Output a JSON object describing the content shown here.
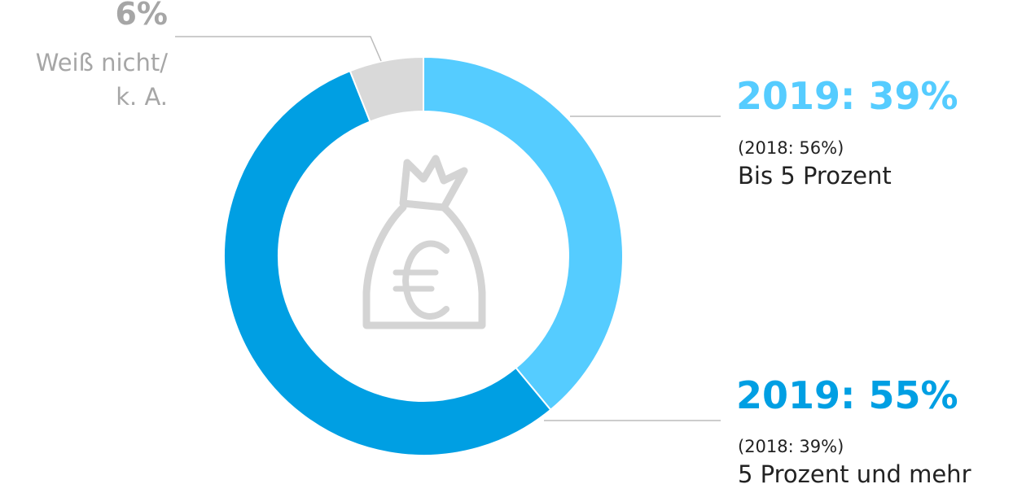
{
  "chart_data": {
    "type": "donut",
    "categories": [
      "Bis 5 Prozent",
      "5 Prozent und mehr",
      "Weiß nicht/\nk. A."
    ],
    "values": [
      39,
      55,
      6
    ],
    "value_labels": [
      "2019: 39%",
      "2019: 55%",
      "6%"
    ],
    "previous_labels": [
      "(2018: 56%)",
      "(2018: 39%)",
      null
    ],
    "colors": [
      "#55ccff",
      "#009fe3",
      "#d9d9d9"
    ],
    "label_colors": [
      "#55ccff",
      "#009fe3",
      "#a6a6a6"
    ]
  }
}
